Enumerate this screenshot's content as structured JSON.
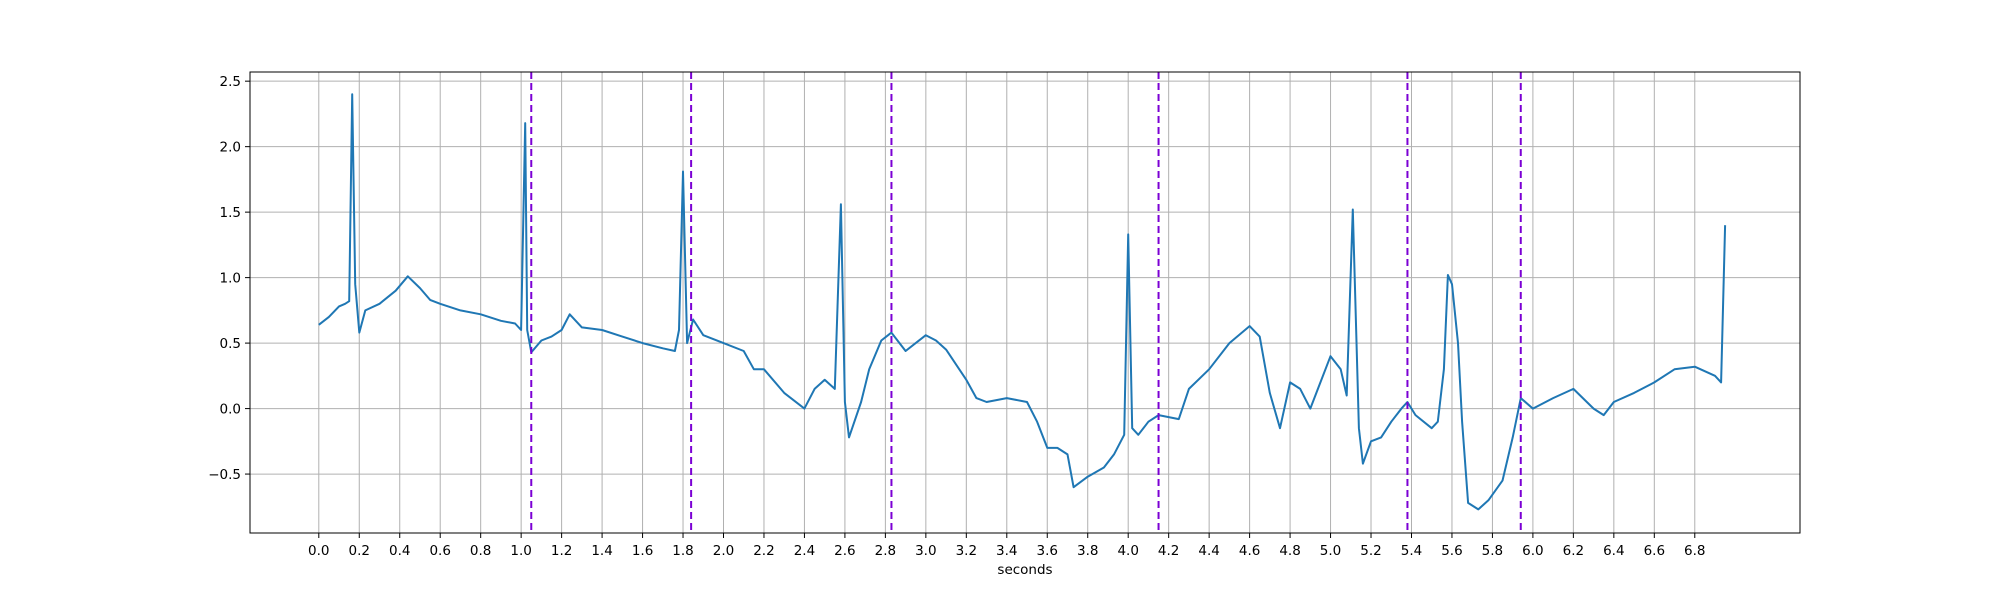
{
  "chart_data": {
    "type": "line",
    "title": "",
    "xlabel": "seconds",
    "ylabel": "",
    "xlim": [
      -0.34,
      7.32
    ],
    "ylim": [
      -0.95,
      2.57
    ],
    "grid": true,
    "legend": "none",
    "x_ticks": [
      0.0,
      0.2,
      0.4,
      0.6,
      0.8,
      1.0,
      1.2,
      1.4,
      1.6,
      1.8,
      2.0,
      2.2,
      2.4,
      2.6,
      2.8,
      3.0,
      3.2,
      3.4,
      3.6,
      3.8,
      4.0,
      4.2,
      4.4,
      4.6,
      4.8,
      5.0,
      5.2,
      5.4,
      5.6,
      5.8,
      6.0,
      6.2,
      6.4,
      6.6,
      6.8
    ],
    "x_tick_labels": [
      "0.0",
      "0.2",
      "0.4",
      "0.6",
      "0.8",
      "1.0",
      "1.2",
      "1.4",
      "1.6",
      "1.8",
      "2.0",
      "2.2",
      "2.4",
      "2.6",
      "2.8",
      "3.0",
      "3.2",
      "3.4",
      "3.6",
      "3.8",
      "4.0",
      "4.2",
      "4.4",
      "4.6",
      "4.8",
      "5.0",
      "5.2",
      "5.4",
      "5.6",
      "5.8",
      "6.0",
      "6.2",
      "6.4",
      "6.6",
      "6.8"
    ],
    "y_ticks": [
      -0.5,
      0.0,
      0.5,
      1.0,
      1.5,
      2.0,
      2.5
    ],
    "y_tick_labels": [
      "−0.5",
      "0.0",
      "0.5",
      "1.0",
      "1.5",
      "2.0",
      "2.5"
    ],
    "vlines": [
      1.05,
      1.84,
      2.83,
      4.15,
      5.38,
      5.94
    ],
    "vline_color": "#7b00d4",
    "series": [
      {
        "name": "",
        "color": "#1f77b4",
        "points": [
          [
            0.0,
            0.64
          ],
          [
            0.05,
            0.7
          ],
          [
            0.1,
            0.78
          ],
          [
            0.13,
            0.8
          ],
          [
            0.15,
            0.82
          ],
          [
            0.165,
            2.4
          ],
          [
            0.18,
            0.95
          ],
          [
            0.2,
            0.58
          ],
          [
            0.23,
            0.75
          ],
          [
            0.3,
            0.8
          ],
          [
            0.38,
            0.9
          ],
          [
            0.44,
            1.01
          ],
          [
            0.5,
            0.92
          ],
          [
            0.55,
            0.83
          ],
          [
            0.6,
            0.8
          ],
          [
            0.7,
            0.75
          ],
          [
            0.8,
            0.72
          ],
          [
            0.9,
            0.67
          ],
          [
            0.97,
            0.65
          ],
          [
            1.0,
            0.6
          ],
          [
            1.02,
            2.18
          ],
          [
            1.03,
            0.6
          ],
          [
            1.05,
            0.43
          ],
          [
            1.1,
            0.52
          ],
          [
            1.15,
            0.55
          ],
          [
            1.2,
            0.6
          ],
          [
            1.24,
            0.72
          ],
          [
            1.3,
            0.62
          ],
          [
            1.4,
            0.6
          ],
          [
            1.5,
            0.55
          ],
          [
            1.6,
            0.5
          ],
          [
            1.7,
            0.46
          ],
          [
            1.76,
            0.44
          ],
          [
            1.78,
            0.6
          ],
          [
            1.8,
            1.81
          ],
          [
            1.82,
            0.5
          ],
          [
            1.85,
            0.68
          ],
          [
            1.9,
            0.56
          ],
          [
            2.0,
            0.5
          ],
          [
            2.1,
            0.44
          ],
          [
            2.15,
            0.3
          ],
          [
            2.2,
            0.3
          ],
          [
            2.3,
            0.12
          ],
          [
            2.4,
            0.0
          ],
          [
            2.45,
            0.15
          ],
          [
            2.5,
            0.22
          ],
          [
            2.55,
            0.15
          ],
          [
            2.58,
            1.56
          ],
          [
            2.6,
            0.05
          ],
          [
            2.62,
            -0.22
          ],
          [
            2.68,
            0.05
          ],
          [
            2.72,
            0.3
          ],
          [
            2.78,
            0.52
          ],
          [
            2.83,
            0.58
          ],
          [
            2.9,
            0.44
          ],
          [
            2.95,
            0.5
          ],
          [
            3.0,
            0.56
          ],
          [
            3.05,
            0.52
          ],
          [
            3.1,
            0.45
          ],
          [
            3.2,
            0.22
          ],
          [
            3.25,
            0.08
          ],
          [
            3.3,
            0.05
          ],
          [
            3.4,
            0.08
          ],
          [
            3.5,
            0.05
          ],
          [
            3.55,
            -0.1
          ],
          [
            3.6,
            -0.3
          ],
          [
            3.65,
            -0.3
          ],
          [
            3.7,
            -0.35
          ],
          [
            3.73,
            -0.6
          ],
          [
            3.8,
            -0.52
          ],
          [
            3.88,
            -0.45
          ],
          [
            3.93,
            -0.35
          ],
          [
            3.98,
            -0.2
          ],
          [
            4.0,
            1.33
          ],
          [
            4.02,
            -0.15
          ],
          [
            4.05,
            -0.2
          ],
          [
            4.1,
            -0.1
          ],
          [
            4.15,
            -0.05
          ],
          [
            4.25,
            -0.08
          ],
          [
            4.3,
            0.15
          ],
          [
            4.4,
            0.3
          ],
          [
            4.5,
            0.5
          ],
          [
            4.6,
            0.63
          ],
          [
            4.65,
            0.55
          ],
          [
            4.7,
            0.12
          ],
          [
            4.75,
            -0.15
          ],
          [
            4.8,
            0.2
          ],
          [
            4.85,
            0.15
          ],
          [
            4.9,
            0.0
          ],
          [
            4.95,
            0.2
          ],
          [
            5.0,
            0.4
          ],
          [
            5.05,
            0.3
          ],
          [
            5.08,
            0.1
          ],
          [
            5.11,
            1.52
          ],
          [
            5.14,
            -0.15
          ],
          [
            5.16,
            -0.42
          ],
          [
            5.2,
            -0.25
          ],
          [
            5.25,
            -0.22
          ],
          [
            5.3,
            -0.1
          ],
          [
            5.35,
            0.0
          ],
          [
            5.38,
            0.05
          ],
          [
            5.42,
            -0.05
          ],
          [
            5.5,
            -0.15
          ],
          [
            5.53,
            -0.1
          ],
          [
            5.56,
            0.3
          ],
          [
            5.58,
            1.02
          ],
          [
            5.6,
            0.95
          ],
          [
            5.63,
            0.5
          ],
          [
            5.65,
            -0.1
          ],
          [
            5.68,
            -0.72
          ],
          [
            5.73,
            -0.77
          ],
          [
            5.78,
            -0.7
          ],
          [
            5.85,
            -0.55
          ],
          [
            5.9,
            -0.22
          ],
          [
            5.94,
            0.08
          ],
          [
            6.0,
            0.0
          ],
          [
            6.1,
            0.08
          ],
          [
            6.2,
            0.15
          ],
          [
            6.3,
            0.0
          ],
          [
            6.35,
            -0.05
          ],
          [
            6.4,
            0.05
          ],
          [
            6.5,
            0.12
          ],
          [
            6.6,
            0.2
          ],
          [
            6.7,
            0.3
          ],
          [
            6.8,
            0.32
          ],
          [
            6.9,
            0.25
          ],
          [
            6.93,
            0.2
          ],
          [
            6.95,
            1.4
          ]
        ]
      }
    ]
  }
}
